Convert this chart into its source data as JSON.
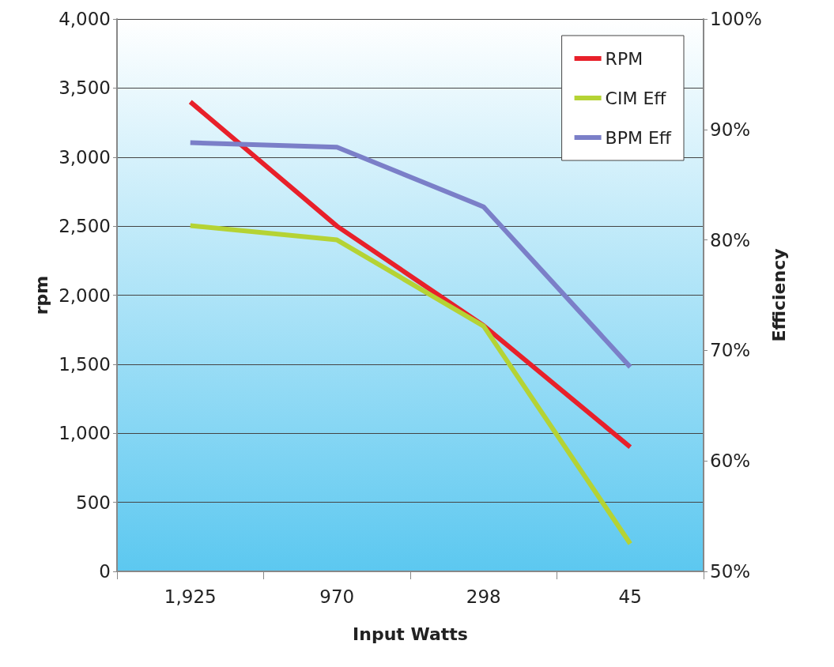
{
  "chart_data": {
    "type": "line",
    "xlabel": "Input Watts",
    "ylabel": "rpm",
    "y2label": "Efficiency",
    "categories": [
      "1,925",
      "970",
      "298",
      "45"
    ],
    "series": [
      {
        "name": "RPM",
        "color": "#e8202a",
        "values": [
          3400,
          2500,
          1780,
          900
        ]
      },
      {
        "name": "CIM Eff",
        "color": "#b5d334",
        "values": [
          81.3,
          80,
          72.2,
          52.5
        ],
        "axis": "y2"
      },
      {
        "name": "BPM Eff",
        "color": "#7b7fc8",
        "values": [
          88.8,
          88.4,
          83,
          68.5
        ],
        "axis": "y2"
      }
    ],
    "ylim": [
      0,
      4000
    ],
    "yticks": [
      0,
      {
        "value": 500,
        "label": "500"
      },
      {
        "value": 1000,
        "label": "1,000"
      },
      {
        "value": 1500,
        "label": "1,500"
      },
      {
        "value": 2000,
        "label": "2,000"
      },
      {
        "value": 2500,
        "label": "2,500"
      },
      {
        "value": 3000,
        "label": "3,000"
      },
      {
        "value": 3500,
        "label": "3,500"
      },
      {
        "value": 4000,
        "label": "4,000"
      }
    ],
    "y2lim": [
      50,
      100
    ],
    "y2ticks": [
      {
        "value": 50,
        "label": "50%"
      },
      {
        "value": 60,
        "label": "60%"
      },
      {
        "value": 70,
        "label": "70%"
      },
      {
        "value": 80,
        "label": "80%"
      },
      {
        "value": 90,
        "label": "90%"
      },
      {
        "value": 100,
        "label": "100%"
      }
    ],
    "grid": "y",
    "legend": "top right",
    "marker": "none",
    "line_style": "solid"
  }
}
